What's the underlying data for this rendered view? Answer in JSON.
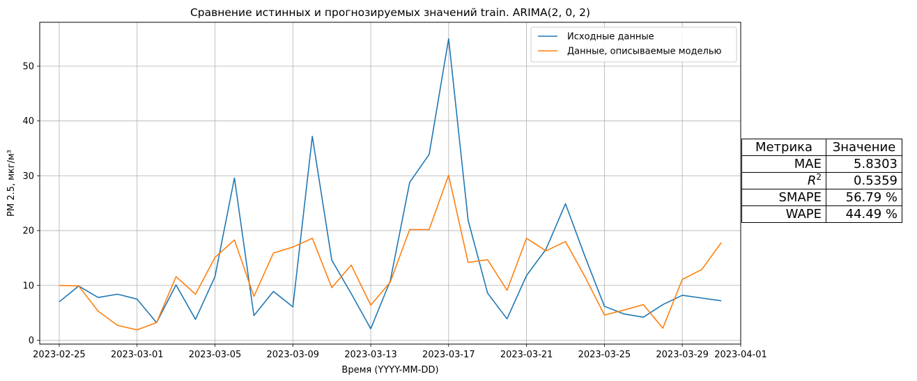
{
  "chart_data": {
    "type": "line",
    "title": "Сравнение истинных и прогнозируемых значений train. ARIMA(2, 0, 2)",
    "xlabel": "Время (YYYY-MM-DD)",
    "ylabel": "PM 2.5, мкг/м³",
    "xlim": [
      "2023-02-24",
      "2023-04-01"
    ],
    "ylim": [
      -0.7,
      58
    ],
    "x_ticks": [
      "2023-02-25",
      "2023-03-01",
      "2023-03-05",
      "2023-03-09",
      "2023-03-13",
      "2023-03-17",
      "2023-03-21",
      "2023-03-25",
      "2023-03-29",
      "2023-04-01"
    ],
    "y_ticks": [
      0,
      10,
      20,
      30,
      40,
      50
    ],
    "grid": true,
    "legend_position": "top-right",
    "x": [
      "2023-02-25",
      "2023-02-26",
      "2023-02-27",
      "2023-02-28",
      "2023-03-01",
      "2023-03-02",
      "2023-03-03",
      "2023-03-04",
      "2023-03-05",
      "2023-03-06",
      "2023-03-07",
      "2023-03-08",
      "2023-03-09",
      "2023-03-10",
      "2023-03-11",
      "2023-03-12",
      "2023-03-13",
      "2023-03-14",
      "2023-03-15",
      "2023-03-16",
      "2023-03-17",
      "2023-03-18",
      "2023-03-19",
      "2023-03-20",
      "2023-03-21",
      "2023-03-22",
      "2023-03-23",
      "2023-03-24",
      "2023-03-25",
      "2023-03-26",
      "2023-03-27",
      "2023-03-28",
      "2023-03-29",
      "2023-03-30",
      "2023-03-31"
    ],
    "series": [
      {
        "name": "Исходные данные",
        "color": "#1f77b4",
        "values": [
          7.0,
          9.9,
          7.8,
          8.4,
          7.5,
          3.2,
          10.1,
          3.8,
          11.6,
          29.6,
          4.5,
          8.9,
          6.1,
          37.2,
          14.6,
          8.5,
          2.1,
          10.8,
          28.8,
          33.9,
          55.0,
          21.9,
          8.6,
          3.9,
          11.8,
          16.6,
          24.9,
          15.3,
          6.2,
          4.8,
          4.2,
          6.5,
          8.2,
          7.7,
          7.2
        ]
      },
      {
        "name": "Данные, описываемые моделью",
        "color": "#ff7f0e",
        "values": [
          10.0,
          9.9,
          5.3,
          2.7,
          1.9,
          3.2,
          11.6,
          8.4,
          15.1,
          18.3,
          8.0,
          15.9,
          17.0,
          18.6,
          9.6,
          13.7,
          6.4,
          10.6,
          20.2,
          20.2,
          30.1,
          14.2,
          14.7,
          9.1,
          18.6,
          16.3,
          18.0,
          11.6,
          4.6,
          5.5,
          6.5,
          2.2,
          11.1,
          12.9,
          17.8
        ]
      }
    ]
  },
  "metrics_table": {
    "headers": [
      "Метрика",
      "Значение"
    ],
    "rows": [
      {
        "metric": "MAE",
        "value": "5.8303"
      },
      {
        "metric": "R",
        "metric_sup": "2",
        "value": "0.5359"
      },
      {
        "metric": "SMAPE",
        "value": "56.79 %"
      },
      {
        "metric": "WAPE",
        "value": "44.49 %"
      }
    ]
  }
}
